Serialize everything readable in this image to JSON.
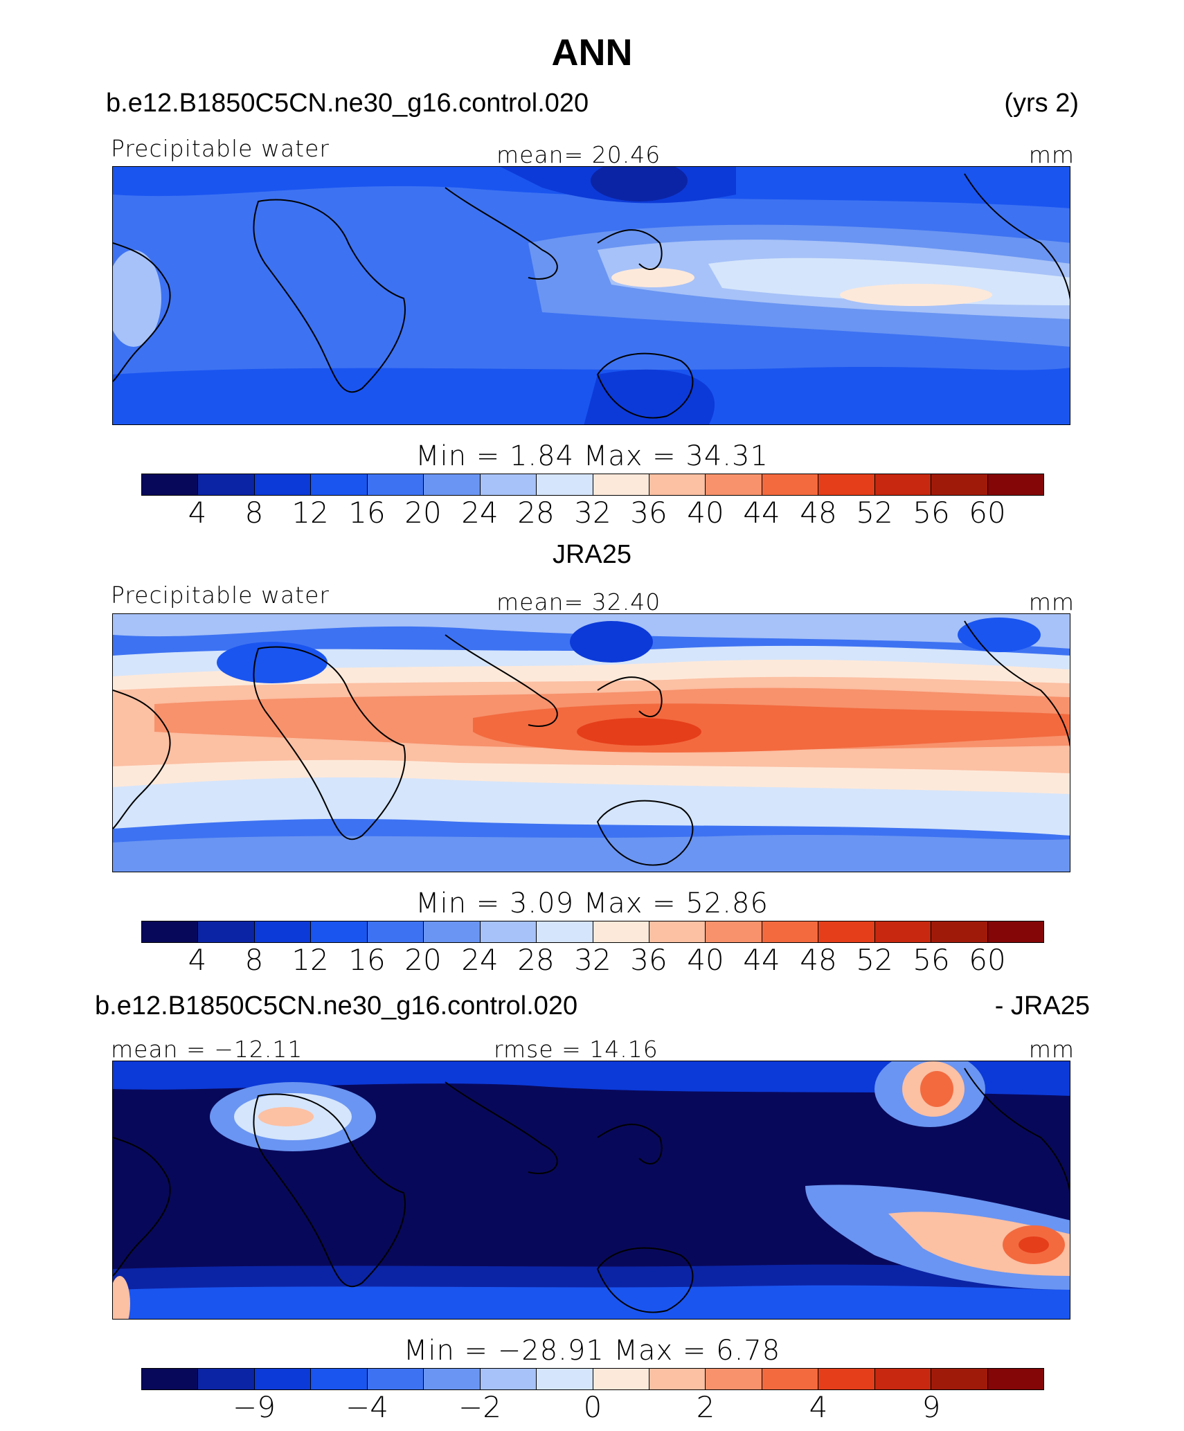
{
  "header": {
    "title": "ANN"
  },
  "colors": [
    "#08085a",
    "#0b24a6",
    "#0c3ad8",
    "#1a55f0",
    "#3d72f2",
    "#6a95f2",
    "#a7c2f8",
    "#d5e5fb",
    "#fde9da",
    "#fcc0a3",
    "#f7926c",
    "#f36a3f",
    "#e53e1a",
    "#c8280f",
    "#a01a0a",
    "#840606"
  ],
  "panels": [
    {
      "case_left": "b.e12.B1850C5CN.ne30_g16.control.020",
      "case_right": "(yrs 2)",
      "variable": "Precipitable water",
      "mean_text": "mean=  20.46",
      "units": "mm",
      "minmax_text": "Min  =     1.84  Max  =   34.31",
      "ticks": [
        "4",
        "8",
        "12",
        "16",
        "20",
        "24",
        "28",
        "32",
        "36",
        "40",
        "44",
        "48",
        "52",
        "56",
        "60"
      ]
    },
    {
      "dataset_title": "JRA25",
      "variable": "Precipitable water",
      "mean_text": "mean=  32.40",
      "units": "mm",
      "minmax_text": "Min  =     3.09  Max  =   52.86",
      "ticks": [
        "4",
        "8",
        "12",
        "16",
        "20",
        "24",
        "28",
        "32",
        "36",
        "40",
        "44",
        "48",
        "52",
        "56",
        "60"
      ]
    },
    {
      "case_left": "b.e12.B1850C5CN.ne30_g16.control.020",
      "case_right": "- JRA25",
      "mean_text": "mean = −12.11",
      "rmse_text": "rmse =   14.16",
      "units": "mm",
      "minmax_text": "Min  = −28.91  Max  =    6.78",
      "ticks": [
        "−9",
        "−4",
        "−2",
        "0",
        "2",
        "4",
        "9"
      ]
    }
  ]
}
